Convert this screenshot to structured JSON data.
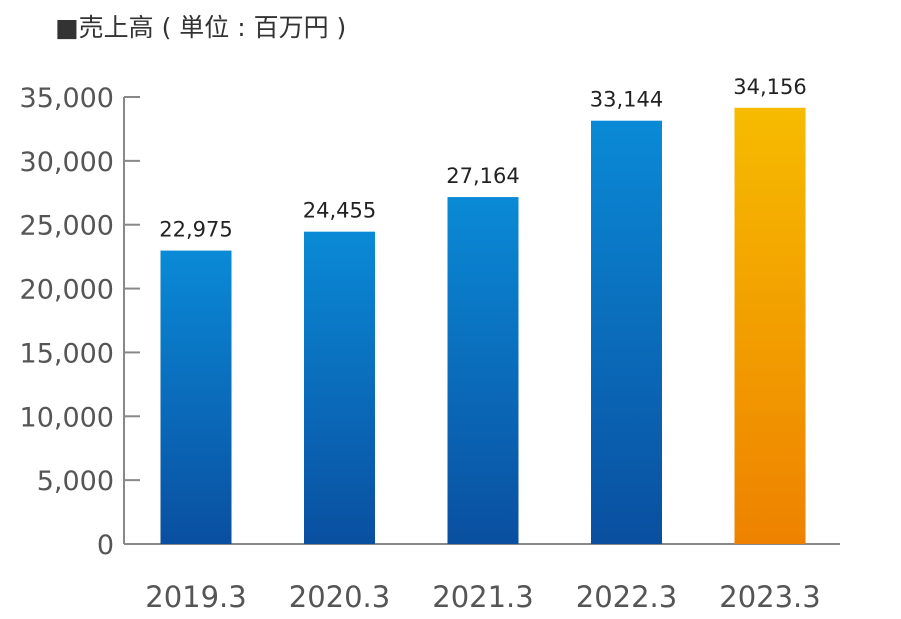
{
  "title": "■売上高 ( 単位 : 百万円 )",
  "chart_data": {
    "type": "bar",
    "title": "■売上高 ( 単位 : 百万円 )",
    "xlabel": "",
    "ylabel": "",
    "categories": [
      "2019.3",
      "2020.3",
      "2021.3",
      "2022.3",
      "2023.3"
    ],
    "values": [
      22975,
      24455,
      27164,
      33144,
      34156
    ],
    "value_labels": [
      "22,975",
      "24,455",
      "27,164",
      "33,144",
      "34,156"
    ],
    "ylim": [
      0,
      35000
    ],
    "yticks": [
      0,
      5000,
      10000,
      15000,
      20000,
      25000,
      30000,
      35000
    ],
    "ytick_labels": [
      "0",
      "5,000",
      "10,000",
      "15,000",
      "20,000",
      "25,000",
      "30,000",
      "35,000"
    ],
    "grid": false,
    "legend": "none",
    "highlight_index": 4,
    "colors": {
      "bar_top": "#0a8ad6",
      "bar_bottom": "#0a4fa0",
      "highlight_top": "#f6bb00",
      "highlight_bottom": "#ee8200",
      "axis": "#888888"
    }
  }
}
